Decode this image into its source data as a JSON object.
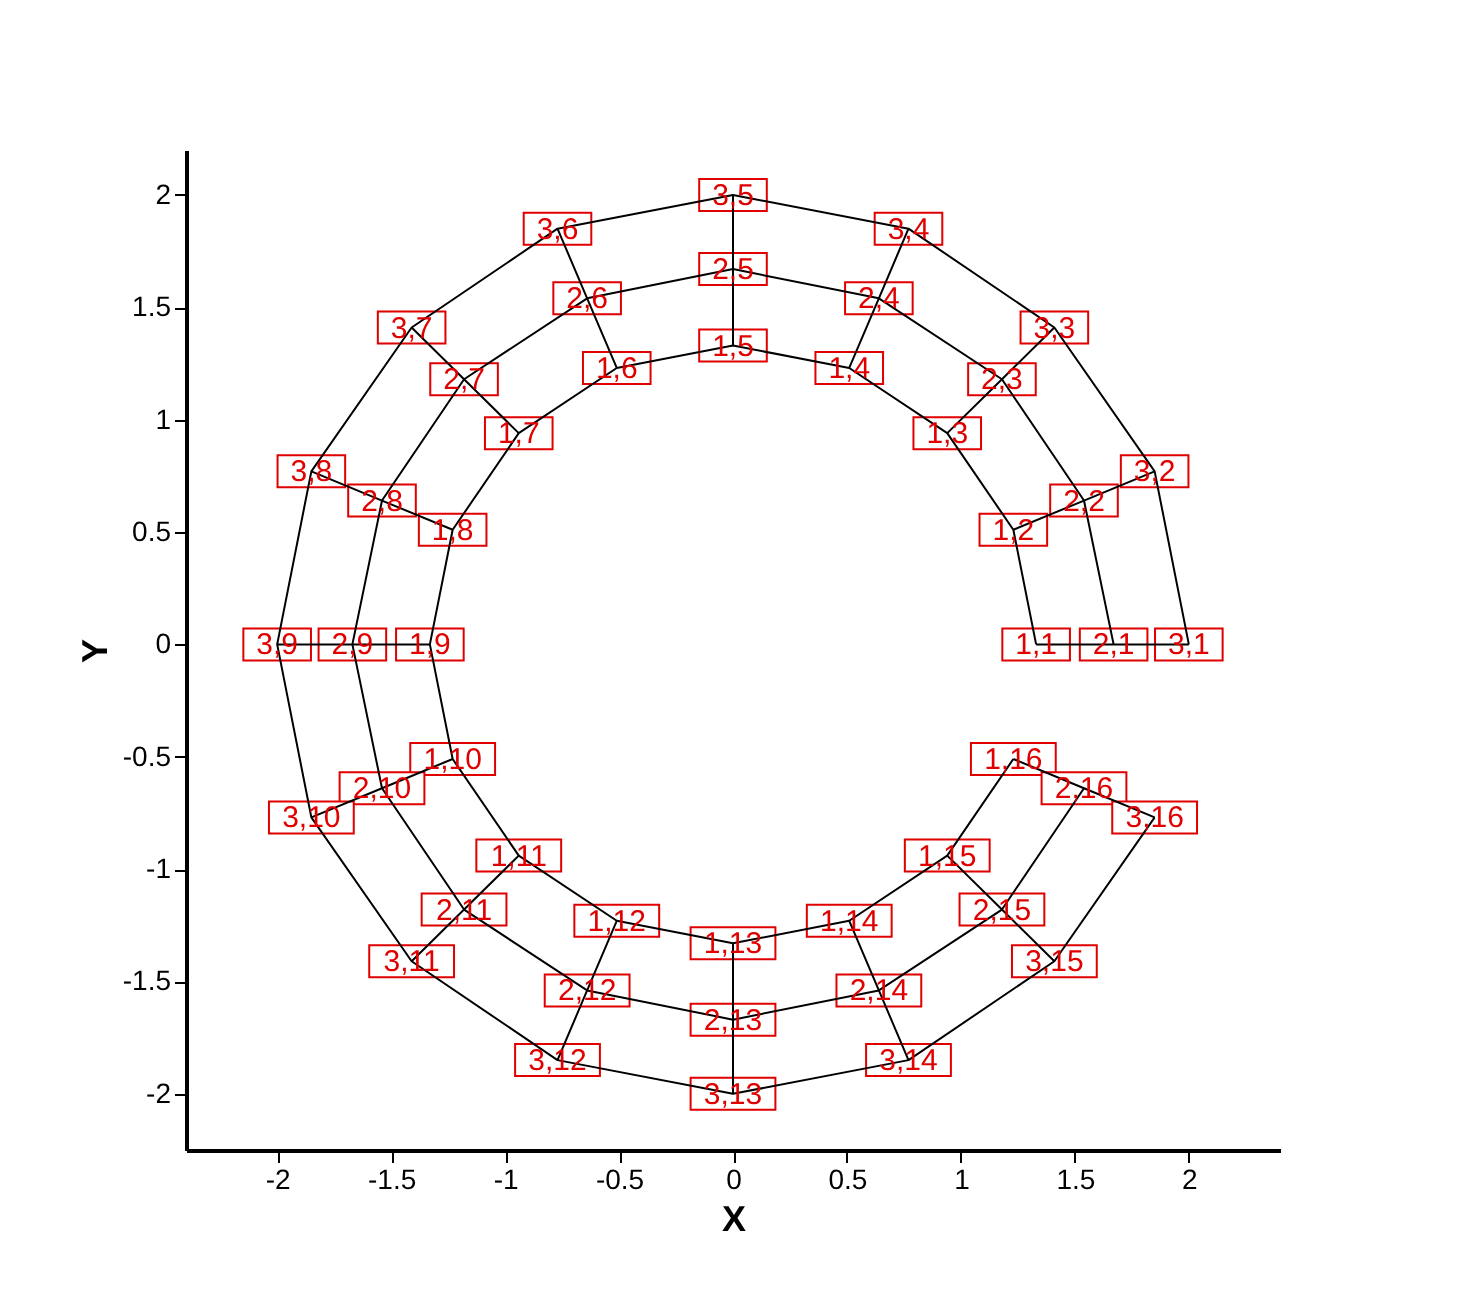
{
  "chart_data": {
    "type": "line",
    "xlabel": "X",
    "ylabel": "Y",
    "xlim": [
      -2.4,
      2.4
    ],
    "ylim": [
      -2.25,
      2.2
    ],
    "xticks": [
      -2,
      -1.5,
      -1,
      -0.5,
      0,
      0.5,
      1,
      1.5,
      2
    ],
    "yticks": [
      -2,
      -1.5,
      -1,
      -0.5,
      0,
      0.5,
      1,
      1.5,
      2
    ],
    "grid": false,
    "legend": false,
    "line_style": "solid",
    "series": [
      {
        "color": "#000000",
        "marker": "square",
        "x": [
          1.33,
          1.23,
          0.94,
          0.51,
          0,
          -0.51,
          -0.94,
          -1.23,
          -1.33,
          -1.23,
          -0.94,
          -0.51,
          0,
          0.51,
          0.94,
          1.23
        ],
        "values": [
          0,
          0.51,
          0.94,
          1.23,
          1.33,
          1.23,
          0.94,
          0.51,
          0,
          -0.51,
          -0.94,
          -1.23,
          -1.33,
          -1.23,
          -0.94,
          -0.51
        ]
      },
      {
        "color": "#000000",
        "marker": "square",
        "x": [
          1.67,
          1.54,
          1.18,
          0.64,
          0,
          -0.64,
          -1.18,
          -1.54,
          -1.67,
          -1.54,
          -1.18,
          -0.64,
          0,
          0.64,
          1.18,
          1.54
        ],
        "values": [
          0,
          0.64,
          1.18,
          1.54,
          1.67,
          1.54,
          1.18,
          0.64,
          0,
          -0.64,
          -1.18,
          -1.54,
          -1.67,
          -1.54,
          -1.18,
          -0.64
        ]
      },
      {
        "color": "#000000",
        "marker": "square",
        "x": [
          2,
          1.85,
          1.41,
          0.77,
          0,
          -0.77,
          -1.41,
          -1.85,
          -2,
          -1.85,
          -1.41,
          -0.77,
          0,
          0.77,
          1.41,
          1.85
        ],
        "values": [
          0,
          0.77,
          1.41,
          1.85,
          2,
          1.85,
          1.41,
          0.77,
          0,
          -0.77,
          -1.41,
          -1.85,
          -2,
          -1.85,
          -1.41,
          -0.77
        ]
      },
      {
        "color": "#000000",
        "x": [
          1.33,
          1.67,
          2
        ],
        "values": [
          0,
          0,
          0
        ]
      },
      {
        "color": "#000000",
        "x": [
          1.23,
          1.54,
          1.85
        ],
        "values": [
          0.51,
          0.64,
          0.77
        ]
      },
      {
        "color": "#000000",
        "x": [
          0.94,
          1.18,
          1.41
        ],
        "values": [
          0.94,
          1.18,
          1.41
        ]
      },
      {
        "color": "#000000",
        "x": [
          0.51,
          0.64,
          0.77
        ],
        "values": [
          1.23,
          1.54,
          1.85
        ]
      },
      {
        "color": "#000000",
        "x": [
          0,
          0,
          0
        ],
        "values": [
          1.33,
          1.67,
          2
        ]
      },
      {
        "color": "#000000",
        "x": [
          -0.51,
          -0.64,
          -0.77
        ],
        "values": [
          1.23,
          1.54,
          1.85
        ]
      },
      {
        "color": "#000000",
        "x": [
          -0.94,
          -1.18,
          -1.41
        ],
        "values": [
          0.94,
          1.18,
          1.41
        ]
      },
      {
        "color": "#000000",
        "x": [
          -1.23,
          -1.54,
          -1.85
        ],
        "values": [
          0.51,
          0.64,
          0.77
        ]
      },
      {
        "color": "#000000",
        "x": [
          -1.33,
          -1.67,
          -2
        ],
        "values": [
          0,
          0,
          0
        ]
      },
      {
        "color": "#000000",
        "x": [
          -1.23,
          -1.54,
          -1.85
        ],
        "values": [
          -0.51,
          -0.64,
          -0.77
        ]
      },
      {
        "color": "#000000",
        "x": [
          -0.94,
          -1.18,
          -1.41
        ],
        "values": [
          -0.94,
          -1.18,
          -1.41
        ]
      },
      {
        "color": "#000000",
        "x": [
          -0.51,
          -0.64,
          -0.77
        ],
        "values": [
          -1.23,
          -1.54,
          -1.85
        ]
      },
      {
        "color": "#000000",
        "x": [
          0,
          0,
          0
        ],
        "values": [
          -1.33,
          -1.67,
          -2
        ]
      },
      {
        "color": "#000000",
        "x": [
          0.51,
          0.64,
          0.77
        ],
        "values": [
          -1.23,
          -1.54,
          -1.85
        ]
      },
      {
        "color": "#000000",
        "x": [
          0.94,
          1.18,
          1.41
        ],
        "values": [
          -0.94,
          -1.18,
          -1.41
        ]
      },
      {
        "color": "#000000",
        "x": [
          1.23,
          1.54,
          1.85
        ],
        "values": [
          -0.51,
          -0.64,
          -0.77
        ]
      }
    ],
    "annotations": [
      {
        "text": "1,1",
        "x": 1.33,
        "y": 0
      },
      {
        "text": "1,2",
        "x": 1.23,
        "y": 0.51
      },
      {
        "text": "1,3",
        "x": 0.94,
        "y": 0.94
      },
      {
        "text": "1,4",
        "x": 0.51,
        "y": 1.23
      },
      {
        "text": "1,5",
        "x": 0,
        "y": 1.33
      },
      {
        "text": "1,6",
        "x": -0.51,
        "y": 1.23
      },
      {
        "text": "1,7",
        "x": -0.94,
        "y": 0.94
      },
      {
        "text": "1,8",
        "x": -1.23,
        "y": 0.51
      },
      {
        "text": "1,9",
        "x": -1.33,
        "y": 0
      },
      {
        "text": "1,10",
        "x": -1.23,
        "y": -0.51
      },
      {
        "text": "1,11",
        "x": -0.94,
        "y": -0.94
      },
      {
        "text": "1,12",
        "x": -0.51,
        "y": -1.23
      },
      {
        "text": "1,13",
        "x": 0,
        "y": -1.33
      },
      {
        "text": "1,14",
        "x": 0.51,
        "y": -1.23
      },
      {
        "text": "1,15",
        "x": 0.94,
        "y": -0.94
      },
      {
        "text": "1,16",
        "x": 1.23,
        "y": -0.51
      },
      {
        "text": "2,1",
        "x": 1.67,
        "y": 0
      },
      {
        "text": "2,2",
        "x": 1.54,
        "y": 0.64
      },
      {
        "text": "2,3",
        "x": 1.18,
        "y": 1.18
      },
      {
        "text": "2,4",
        "x": 0.64,
        "y": 1.54
      },
      {
        "text": "2,5",
        "x": 0,
        "y": 1.67
      },
      {
        "text": "2,6",
        "x": -0.64,
        "y": 1.54
      },
      {
        "text": "2,7",
        "x": -1.18,
        "y": 1.18
      },
      {
        "text": "2,8",
        "x": -1.54,
        "y": 0.64
      },
      {
        "text": "2,9",
        "x": -1.67,
        "y": 0
      },
      {
        "text": "2,10",
        "x": -1.54,
        "y": -0.64
      },
      {
        "text": "2,11",
        "x": -1.18,
        "y": -1.18
      },
      {
        "text": "2,12",
        "x": -0.64,
        "y": -1.54
      },
      {
        "text": "2,13",
        "x": 0,
        "y": -1.67
      },
      {
        "text": "2,14",
        "x": 0.64,
        "y": -1.54
      },
      {
        "text": "2,15",
        "x": 1.18,
        "y": -1.18
      },
      {
        "text": "2,16",
        "x": 1.54,
        "y": -0.64
      },
      {
        "text": "3,1",
        "x": 2,
        "y": 0
      },
      {
        "text": "3,2",
        "x": 1.85,
        "y": 0.77
      },
      {
        "text": "3,3",
        "x": 1.41,
        "y": 1.41
      },
      {
        "text": "3,4",
        "x": 0.77,
        "y": 1.85
      },
      {
        "text": "3,5",
        "x": 0,
        "y": 2
      },
      {
        "text": "3,6",
        "x": -0.77,
        "y": 1.85
      },
      {
        "text": "3,7",
        "x": -1.41,
        "y": 1.41
      },
      {
        "text": "3,8",
        "x": -1.85,
        "y": 0.77
      },
      {
        "text": "3,9",
        "x": -2,
        "y": 0
      },
      {
        "text": "3,10",
        "x": -1.85,
        "y": -0.77
      },
      {
        "text": "3,11",
        "x": -1.41,
        "y": -1.41
      },
      {
        "text": "3,12",
        "x": -0.77,
        "y": -1.85
      },
      {
        "text": "3,13",
        "x": 0,
        "y": -2
      },
      {
        "text": "3,14",
        "x": 0.77,
        "y": -1.85
      },
      {
        "text": "3,15",
        "x": 1.41,
        "y": -1.41
      },
      {
        "text": "3,16",
        "x": 1.85,
        "y": -0.77
      }
    ]
  }
}
